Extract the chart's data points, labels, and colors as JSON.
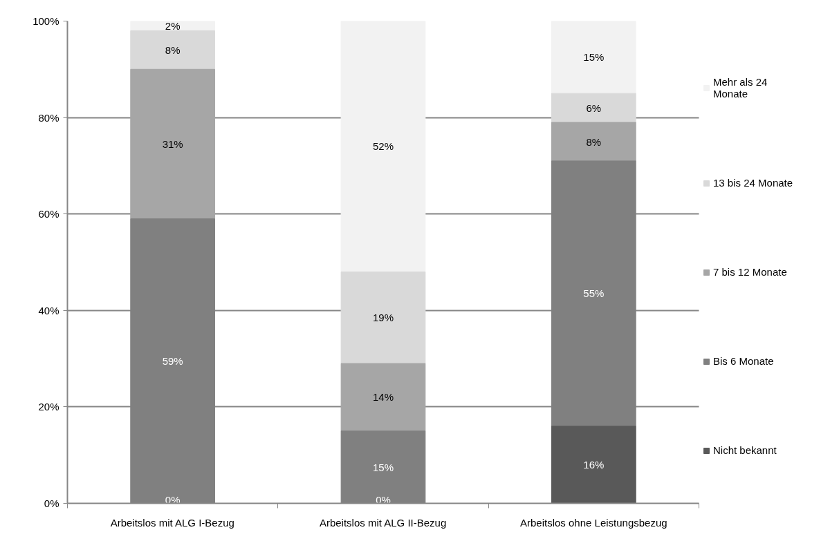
{
  "chart_data": {
    "type": "bar",
    "stacked": true,
    "categories": [
      "Arbeitslos mit ALG I-Bezug",
      "Arbeitslos mit ALG II-Bezug",
      "Arbeitslos ohne Leistungsbezug"
    ],
    "series": [
      {
        "name": "Nicht bekannt",
        "color": "#595959",
        "values": [
          0,
          0,
          16
        ],
        "value_labels": [
          "0%",
          "0%",
          "16%"
        ]
      },
      {
        "name": "Bis 6 Monate",
        "color": "#808080",
        "values": [
          59,
          15,
          55
        ],
        "value_labels": [
          "59%",
          "15%",
          "55%"
        ]
      },
      {
        "name": "7 bis 12 Monate",
        "color": "#a6a6a6",
        "values": [
          31,
          14,
          8
        ],
        "value_labels": [
          "31%",
          "14%",
          "8%"
        ]
      },
      {
        "name": "13 bis 24 Monate",
        "color": "#d9d9d9",
        "values": [
          8,
          19,
          6
        ],
        "value_labels": [
          "8%",
          "19%",
          "6%"
        ]
      },
      {
        "name": "Mehr als 24 Monate",
        "color": "#f2f2f2",
        "values": [
          2,
          52,
          15
        ],
        "value_labels": [
          "2%",
          "52%",
          "15%"
        ]
      }
    ],
    "ylim": [
      0,
      100
    ],
    "yticks": [
      {
        "value": 0,
        "label": "0%"
      },
      {
        "value": 20,
        "label": "20%"
      },
      {
        "value": 40,
        "label": "40%"
      },
      {
        "value": 60,
        "label": "60%"
      },
      {
        "value": 80,
        "label": "80%"
      },
      {
        "value": 100,
        "label": "100%"
      }
    ],
    "grid": "y",
    "legend": "right"
  }
}
